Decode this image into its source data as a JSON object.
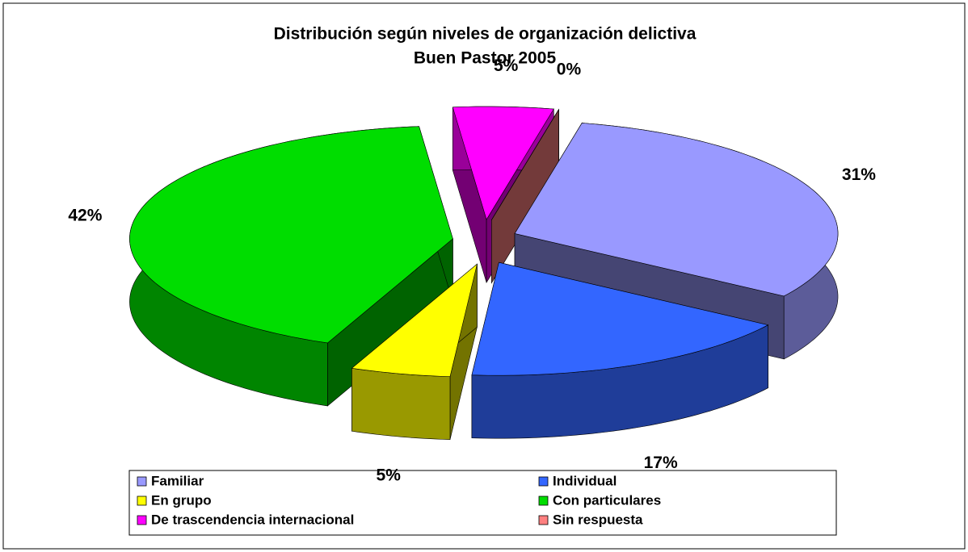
{
  "chart_data": {
    "type": "pie3d",
    "title": "Distribución según niveles de organización delictiva",
    "subtitle": "Buen Pastor 2005",
    "categories": [
      "Familiar",
      "Individual",
      "En grupo",
      "Con particulares",
      "De trascendencia internacional",
      "Sin respuesta"
    ],
    "values": [
      31,
      17,
      5,
      42,
      5,
      0
    ],
    "value_labels": [
      "31%",
      "17%",
      "5%",
      "42%",
      "5%",
      "0%"
    ],
    "colors": [
      "#9999ff",
      "#3366ff",
      "#ffff00",
      "#00dd00",
      "#ff00ff",
      "#ff8080"
    ],
    "legend": "bottom"
  }
}
